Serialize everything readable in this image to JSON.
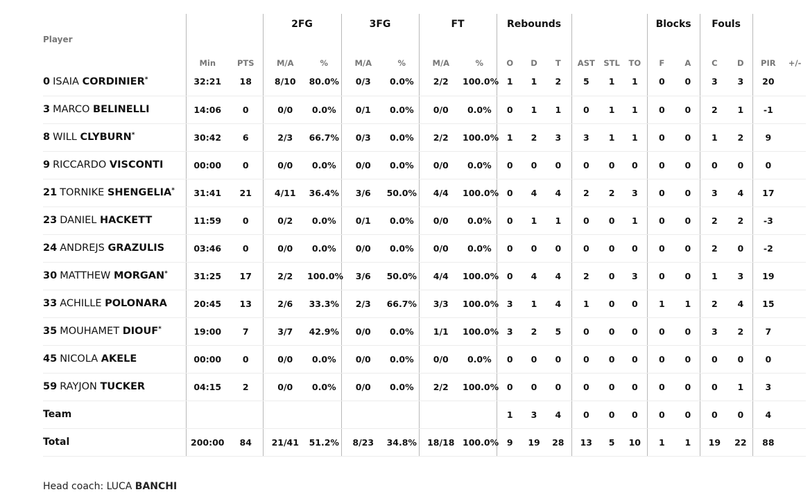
{
  "groups": {
    "fg2": "2FG",
    "fg3": "3FG",
    "ft": "FT",
    "rebounds": "Rebounds",
    "blocks": "Blocks",
    "fouls": "Fouls"
  },
  "columns": {
    "player": "Player",
    "min": "Min",
    "pts": "PTS",
    "fg2_ma": "M/A",
    "fg2_pct": "%",
    "fg3_ma": "M/A",
    "fg3_pct": "%",
    "ft_ma": "M/A",
    "ft_pct": "%",
    "reb_o": "O",
    "reb_d": "D",
    "reb_t": "T",
    "ast": "AST",
    "stl": "STL",
    "to": "TO",
    "blk_f": "F",
    "blk_a": "A",
    "foul_c": "C",
    "foul_d": "D",
    "pir": "PIR",
    "pm": "+/-"
  },
  "players": [
    {
      "num": "0",
      "first": "ISAIA",
      "last": "CORDINIER",
      "starter": "*",
      "min": "32:21",
      "pts": "18",
      "fg2_ma": "8/10",
      "fg2_pct": "80.0%",
      "fg3_ma": "0/3",
      "fg3_pct": "0.0%",
      "ft_ma": "2/2",
      "ft_pct": "100.0%",
      "reb_o": "1",
      "reb_d": "1",
      "reb_t": "2",
      "ast": "5",
      "stl": "1",
      "to": "1",
      "blk_f": "0",
      "blk_a": "0",
      "foul_c": "3",
      "foul_d": "3",
      "pir": "20",
      "pm": ""
    },
    {
      "num": "3",
      "first": "MARCO",
      "last": "BELINELLI",
      "starter": "",
      "min": "14:06",
      "pts": "0",
      "fg2_ma": "0/0",
      "fg2_pct": "0.0%",
      "fg3_ma": "0/1",
      "fg3_pct": "0.0%",
      "ft_ma": "0/0",
      "ft_pct": "0.0%",
      "reb_o": "0",
      "reb_d": "1",
      "reb_t": "1",
      "ast": "0",
      "stl": "1",
      "to": "1",
      "blk_f": "0",
      "blk_a": "0",
      "foul_c": "2",
      "foul_d": "1",
      "pir": "-1",
      "pm": ""
    },
    {
      "num": "8",
      "first": "WILL",
      "last": "CLYBURN",
      "starter": "*",
      "min": "30:42",
      "pts": "6",
      "fg2_ma": "2/3",
      "fg2_pct": "66.7%",
      "fg3_ma": "0/3",
      "fg3_pct": "0.0%",
      "ft_ma": "2/2",
      "ft_pct": "100.0%",
      "reb_o": "1",
      "reb_d": "2",
      "reb_t": "3",
      "ast": "3",
      "stl": "1",
      "to": "1",
      "blk_f": "0",
      "blk_a": "0",
      "foul_c": "1",
      "foul_d": "2",
      "pir": "9",
      "pm": ""
    },
    {
      "num": "9",
      "first": "RICCARDO",
      "last": "VISCONTI",
      "starter": "",
      "min": "00:00",
      "pts": "0",
      "fg2_ma": "0/0",
      "fg2_pct": "0.0%",
      "fg3_ma": "0/0",
      "fg3_pct": "0.0%",
      "ft_ma": "0/0",
      "ft_pct": "0.0%",
      "reb_o": "0",
      "reb_d": "0",
      "reb_t": "0",
      "ast": "0",
      "stl": "0",
      "to": "0",
      "blk_f": "0",
      "blk_a": "0",
      "foul_c": "0",
      "foul_d": "0",
      "pir": "0",
      "pm": ""
    },
    {
      "num": "21",
      "first": "TORNIKE",
      "last": "SHENGELIA",
      "starter": "*",
      "min": "31:41",
      "pts": "21",
      "fg2_ma": "4/11",
      "fg2_pct": "36.4%",
      "fg3_ma": "3/6",
      "fg3_pct": "50.0%",
      "ft_ma": "4/4",
      "ft_pct": "100.0%",
      "reb_o": "0",
      "reb_d": "4",
      "reb_t": "4",
      "ast": "2",
      "stl": "2",
      "to": "3",
      "blk_f": "0",
      "blk_a": "0",
      "foul_c": "3",
      "foul_d": "4",
      "pir": "17",
      "pm": ""
    },
    {
      "num": "23",
      "first": "DANIEL",
      "last": "HACKETT",
      "starter": "",
      "min": "11:59",
      "pts": "0",
      "fg2_ma": "0/2",
      "fg2_pct": "0.0%",
      "fg3_ma": "0/1",
      "fg3_pct": "0.0%",
      "ft_ma": "0/0",
      "ft_pct": "0.0%",
      "reb_o": "0",
      "reb_d": "1",
      "reb_t": "1",
      "ast": "0",
      "stl": "0",
      "to": "1",
      "blk_f": "0",
      "blk_a": "0",
      "foul_c": "2",
      "foul_d": "2",
      "pir": "-3",
      "pm": ""
    },
    {
      "num": "24",
      "first": "ANDREJS",
      "last": "GRAZULIS",
      "starter": "",
      "min": "03:46",
      "pts": "0",
      "fg2_ma": "0/0",
      "fg2_pct": "0.0%",
      "fg3_ma": "0/0",
      "fg3_pct": "0.0%",
      "ft_ma": "0/0",
      "ft_pct": "0.0%",
      "reb_o": "0",
      "reb_d": "0",
      "reb_t": "0",
      "ast": "0",
      "stl": "0",
      "to": "0",
      "blk_f": "0",
      "blk_a": "0",
      "foul_c": "2",
      "foul_d": "0",
      "pir": "-2",
      "pm": ""
    },
    {
      "num": "30",
      "first": "MATTHEW",
      "last": "MORGAN",
      "starter": "*",
      "min": "31:25",
      "pts": "17",
      "fg2_ma": "2/2",
      "fg2_pct": "100.0%",
      "fg3_ma": "3/6",
      "fg3_pct": "50.0%",
      "ft_ma": "4/4",
      "ft_pct": "100.0%",
      "reb_o": "0",
      "reb_d": "4",
      "reb_t": "4",
      "ast": "2",
      "stl": "0",
      "to": "3",
      "blk_f": "0",
      "blk_a": "0",
      "foul_c": "1",
      "foul_d": "3",
      "pir": "19",
      "pm": ""
    },
    {
      "num": "33",
      "first": "ACHILLE",
      "last": "POLONARA",
      "starter": "",
      "min": "20:45",
      "pts": "13",
      "fg2_ma": "2/6",
      "fg2_pct": "33.3%",
      "fg3_ma": "2/3",
      "fg3_pct": "66.7%",
      "ft_ma": "3/3",
      "ft_pct": "100.0%",
      "reb_o": "3",
      "reb_d": "1",
      "reb_t": "4",
      "ast": "1",
      "stl": "0",
      "to": "0",
      "blk_f": "1",
      "blk_a": "1",
      "foul_c": "2",
      "foul_d": "4",
      "pir": "15",
      "pm": ""
    },
    {
      "num": "35",
      "first": "MOUHAMET",
      "last": "DIOUF",
      "starter": "*",
      "min": "19:00",
      "pts": "7",
      "fg2_ma": "3/7",
      "fg2_pct": "42.9%",
      "fg3_ma": "0/0",
      "fg3_pct": "0.0%",
      "ft_ma": "1/1",
      "ft_pct": "100.0%",
      "reb_o": "3",
      "reb_d": "2",
      "reb_t": "5",
      "ast": "0",
      "stl": "0",
      "to": "0",
      "blk_f": "0",
      "blk_a": "0",
      "foul_c": "3",
      "foul_d": "2",
      "pir": "7",
      "pm": ""
    },
    {
      "num": "45",
      "first": "NICOLA",
      "last": "AKELE",
      "starter": "",
      "min": "00:00",
      "pts": "0",
      "fg2_ma": "0/0",
      "fg2_pct": "0.0%",
      "fg3_ma": "0/0",
      "fg3_pct": "0.0%",
      "ft_ma": "0/0",
      "ft_pct": "0.0%",
      "reb_o": "0",
      "reb_d": "0",
      "reb_t": "0",
      "ast": "0",
      "stl": "0",
      "to": "0",
      "blk_f": "0",
      "blk_a": "0",
      "foul_c": "0",
      "foul_d": "0",
      "pir": "0",
      "pm": ""
    },
    {
      "num": "59",
      "first": "RAYJON",
      "last": "TUCKER",
      "starter": "",
      "min": "04:15",
      "pts": "2",
      "fg2_ma": "0/0",
      "fg2_pct": "0.0%",
      "fg3_ma": "0/0",
      "fg3_pct": "0.0%",
      "ft_ma": "2/2",
      "ft_pct": "100.0%",
      "reb_o": "0",
      "reb_d": "0",
      "reb_t": "0",
      "ast": "0",
      "stl": "0",
      "to": "0",
      "blk_f": "0",
      "blk_a": "0",
      "foul_c": "0",
      "foul_d": "1",
      "pir": "3",
      "pm": ""
    }
  ],
  "team": {
    "label": "Team",
    "min": "",
    "pts": "",
    "fg2_ma": "",
    "fg2_pct": "",
    "fg3_ma": "",
    "fg3_pct": "",
    "ft_ma": "",
    "ft_pct": "",
    "reb_o": "1",
    "reb_d": "3",
    "reb_t": "4",
    "ast": "0",
    "stl": "0",
    "to": "0",
    "blk_f": "0",
    "blk_a": "0",
    "foul_c": "0",
    "foul_d": "0",
    "pir": "4",
    "pm": ""
  },
  "total": {
    "label": "Total",
    "min": "200:00",
    "pts": "84",
    "fg2_ma": "21/41",
    "fg2_pct": "51.2%",
    "fg3_ma": "8/23",
    "fg3_pct": "34.8%",
    "ft_ma": "18/18",
    "ft_pct": "100.0%",
    "reb_o": "9",
    "reb_d": "19",
    "reb_t": "28",
    "ast": "13",
    "stl": "5",
    "to": "10",
    "blk_f": "1",
    "blk_a": "1",
    "foul_c": "19",
    "foul_d": "22",
    "pir": "88",
    "pm": ""
  },
  "coach": {
    "prefix": "Head coach: LUCA ",
    "last": "BANCHI"
  }
}
